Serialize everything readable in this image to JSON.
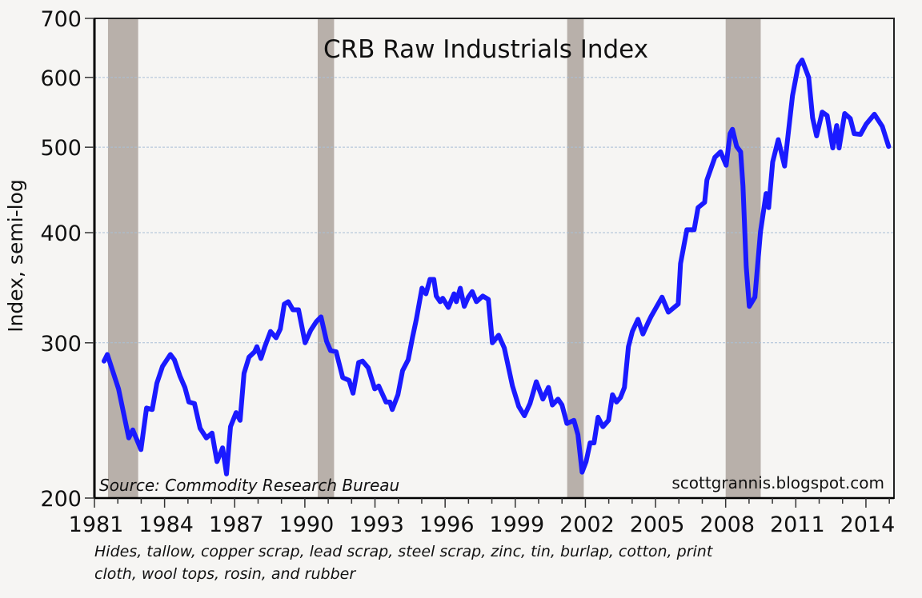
{
  "chart_data": {
    "type": "line",
    "title": "CRB Raw Industrials Index",
    "xlabel": "",
    "ylabel": "Index, semi-log",
    "yscale": "log",
    "ylim": [
      200,
      700
    ],
    "xlim": [
      1981,
      2015.2
    ],
    "yticks": [
      200,
      300,
      400,
      500,
      600,
      700
    ],
    "xticks": [
      1981,
      1984,
      1987,
      1990,
      1993,
      1996,
      1999,
      2002,
      2005,
      2008,
      2011,
      2014
    ],
    "grid": "horizontal dashed at 300, 400, 500, 600",
    "source": "Source: Commodity Research Bureau",
    "credit": "scottgrannis.blogspot.com",
    "note_lines": [
      "Hides, tallow, copper scrap, lead scrap, steel scrap, zinc, tin, burlap, cotton, print",
      "cloth, wool tops, rosin, and rubber"
    ],
    "colors": {
      "line": "#1a1aff",
      "recession": "#b8b0aa",
      "grid": "#a9bfd6",
      "background": "#f6f5f3"
    },
    "recessions": [
      [
        1981.58,
        1982.87
      ],
      [
        1990.55,
        1991.25
      ],
      [
        2001.22,
        2001.93
      ],
      [
        2008.0,
        2009.5
      ]
    ],
    "series": [
      {
        "values": [
          [
            1981.41,
            286
          ],
          [
            1981.55,
            291
          ],
          [
            1982.03,
            266
          ],
          [
            1982.47,
            234
          ],
          [
            1982.64,
            239
          ],
          [
            1982.99,
            227
          ],
          [
            1983.23,
            253
          ],
          [
            1983.47,
            252
          ],
          [
            1983.67,
            270
          ],
          [
            1983.91,
            282
          ],
          [
            1984.25,
            291
          ],
          [
            1984.42,
            287
          ],
          [
            1984.66,
            275
          ],
          [
            1984.87,
            267
          ],
          [
            1985.04,
            257
          ],
          [
            1985.28,
            256
          ],
          [
            1985.52,
            240
          ],
          [
            1985.79,
            234
          ],
          [
            1986.03,
            237
          ],
          [
            1986.24,
            220
          ],
          [
            1986.48,
            228
          ],
          [
            1986.65,
            213
          ],
          [
            1986.82,
            241
          ],
          [
            1987.06,
            250
          ],
          [
            1987.23,
            245
          ],
          [
            1987.4,
            277
          ],
          [
            1987.61,
            289
          ],
          [
            1987.85,
            293
          ],
          [
            1987.95,
            297
          ],
          [
            1988.12,
            288
          ],
          [
            1988.29,
            297
          ],
          [
            1988.53,
            309
          ],
          [
            1988.77,
            304
          ],
          [
            1988.95,
            311
          ],
          [
            1989.12,
            332
          ],
          [
            1989.29,
            334
          ],
          [
            1989.49,
            327
          ],
          [
            1989.73,
            327
          ],
          [
            1990.01,
            300
          ],
          [
            1990.25,
            310
          ],
          [
            1990.49,
            317
          ],
          [
            1990.69,
            321
          ],
          [
            1990.93,
            301
          ],
          [
            1991.1,
            294
          ],
          [
            1991.34,
            293
          ],
          [
            1991.62,
            274
          ],
          [
            1991.89,
            272
          ],
          [
            1992.06,
            263
          ],
          [
            1992.3,
            285
          ],
          [
            1992.47,
            286
          ],
          [
            1992.71,
            281
          ],
          [
            1992.99,
            266
          ],
          [
            1993.16,
            268
          ],
          [
            1993.47,
            257
          ],
          [
            1993.64,
            257
          ],
          [
            1993.74,
            252
          ],
          [
            1993.98,
            262
          ],
          [
            1994.18,
            279
          ],
          [
            1994.42,
            287
          ],
          [
            1994.6,
            304
          ],
          [
            1994.77,
            319
          ],
          [
            1995.01,
            346
          ],
          [
            1995.18,
            341
          ],
          [
            1995.35,
            354
          ],
          [
            1995.52,
            354
          ],
          [
            1995.62,
            339
          ],
          [
            1995.79,
            334
          ],
          [
            1995.9,
            337
          ],
          [
            1996.14,
            329
          ],
          [
            1996.38,
            341
          ],
          [
            1996.48,
            334
          ],
          [
            1996.65,
            346
          ],
          [
            1996.82,
            330
          ],
          [
            1996.99,
            338
          ],
          [
            1997.16,
            343
          ],
          [
            1997.34,
            334
          ],
          [
            1997.61,
            339
          ],
          [
            1997.85,
            336
          ],
          [
            1998.02,
            300
          ],
          [
            1998.29,
            306
          ],
          [
            1998.53,
            296
          ],
          [
            1998.88,
            268
          ],
          [
            1999.15,
            254
          ],
          [
            1999.39,
            248
          ],
          [
            1999.63,
            256
          ],
          [
            1999.9,
            271
          ],
          [
            2000.18,
            259
          ],
          [
            2000.42,
            267
          ],
          [
            2000.59,
            255
          ],
          [
            2000.83,
            259
          ],
          [
            2001.0,
            255
          ],
          [
            2001.21,
            243
          ],
          [
            2001.51,
            245
          ],
          [
            2001.68,
            236
          ],
          [
            2001.86,
            214
          ],
          [
            2002.03,
            220
          ],
          [
            2002.2,
            231
          ],
          [
            2002.37,
            231
          ],
          [
            2002.54,
            247
          ],
          [
            2002.75,
            241
          ],
          [
            2002.99,
            245
          ],
          [
            2003.16,
            262
          ],
          [
            2003.33,
            257
          ],
          [
            2003.5,
            260
          ],
          [
            2003.67,
            267
          ],
          [
            2003.84,
            297
          ],
          [
            2004.01,
            309
          ],
          [
            2004.25,
            319
          ],
          [
            2004.46,
            307
          ],
          [
            2004.7,
            317
          ],
          [
            2004.8,
            321
          ],
          [
            2005.28,
            338
          ],
          [
            2005.55,
            325
          ],
          [
            2005.97,
            332
          ],
          [
            2006.07,
            369
          ],
          [
            2006.34,
            403
          ],
          [
            2006.65,
            403
          ],
          [
            2006.82,
            427
          ],
          [
            2007.1,
            433
          ],
          [
            2007.2,
            459
          ],
          [
            2007.54,
            487
          ],
          [
            2007.78,
            494
          ],
          [
            2008.02,
            477
          ],
          [
            2008.19,
            518
          ],
          [
            2008.29,
            524
          ],
          [
            2008.47,
            501
          ],
          [
            2008.64,
            494
          ],
          [
            2008.74,
            452
          ],
          [
            2008.88,
            366
          ],
          [
            2009.01,
            330
          ],
          [
            2009.25,
            338
          ],
          [
            2009.49,
            401
          ],
          [
            2009.73,
            443
          ],
          [
            2009.84,
            427
          ],
          [
            2010.01,
            481
          ],
          [
            2010.25,
            510
          ],
          [
            2010.52,
            476
          ],
          [
            2010.86,
            572
          ],
          [
            2011.1,
            618
          ],
          [
            2011.27,
            628
          ],
          [
            2011.55,
            600
          ],
          [
            2011.72,
            540
          ],
          [
            2011.89,
            515
          ],
          [
            2012.13,
            548
          ],
          [
            2012.34,
            543
          ],
          [
            2012.58,
            499
          ],
          [
            2012.75,
            529
          ],
          [
            2012.85,
            499
          ],
          [
            2013.09,
            546
          ],
          [
            2013.33,
            539
          ],
          [
            2013.5,
            518
          ],
          [
            2013.77,
            517
          ],
          [
            2014.01,
            531
          ],
          [
            2014.36,
            545
          ],
          [
            2014.7,
            528
          ],
          [
            2014.97,
            501
          ]
        ]
      }
    ]
  }
}
